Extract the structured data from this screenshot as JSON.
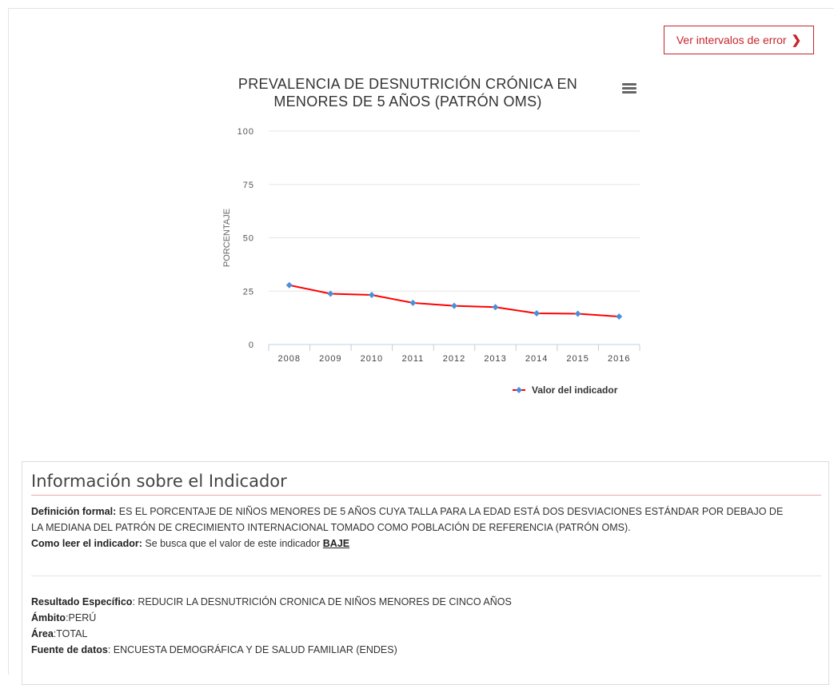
{
  "error_button": {
    "label": "Ver intervalos de error",
    "icon": "chevron-right-icon",
    "color": "#c7252c"
  },
  "chart_data": {
    "type": "line",
    "title_line1": "PREVALENCIA DE DESNUTRICIÓN CRÓNICA EN",
    "title_line2": "MENORES DE 5 AÑOS (PATRÓN OMS)",
    "ylabel": "PORCENTAJE",
    "xlabel": "",
    "categories": [
      "2008",
      "2009",
      "2010",
      "2011",
      "2012",
      "2013",
      "2014",
      "2015",
      "2016"
    ],
    "series": [
      {
        "name": "Valor del indicador",
        "values": [
          27.8,
          23.8,
          23.2,
          19.5,
          18.1,
          17.5,
          14.6,
          14.4,
          13.1
        ],
        "color": "#ff0000",
        "marker_color": "#4a90d9"
      }
    ],
    "ylim": [
      0,
      100
    ],
    "yticks": [
      0,
      25,
      50,
      75,
      100
    ],
    "grid": true,
    "legend_position": "bottom-right"
  },
  "menu_icon": "hamburger-menu-icon",
  "info": {
    "title": "Información sobre el Indicador",
    "def_label": "Definición formal:",
    "def_text_1": "ES EL PORCENTAJE DE NIÑOS MENORES DE 5 AÑOS CUYA TALLA PARA LA EDAD ESTÁ DOS DESVIACIONES ESTÁNDAR POR DEBAJO DE",
    "def_text_2": "LA MEDIANA DEL PATRÓN DE CRECIMIENTO INTERNACIONAL TOMADO COMO POBLACIÓN DE REFERENCIA (PATRÓN OMS).",
    "read_label": "Como leer el indicador:",
    "read_text": "Se busca que el valor de este indicador",
    "read_link": "BAJE",
    "result_label": "Resultado Específico",
    "result_text": ": REDUCIR LA DESNUTRICIÓN CRONICA DE NIÑOS MENORES DE CINCO AÑOS",
    "scope_label": "Ámbito",
    "scope_text": ":PERÚ",
    "area_label": "Área",
    "area_text": ":TOTAL",
    "source_label": "Fuente de datos",
    "source_text": ": ENCUESTA DEMOGRÁFICA Y DE SALUD FAMILIAR (ENDES)"
  }
}
